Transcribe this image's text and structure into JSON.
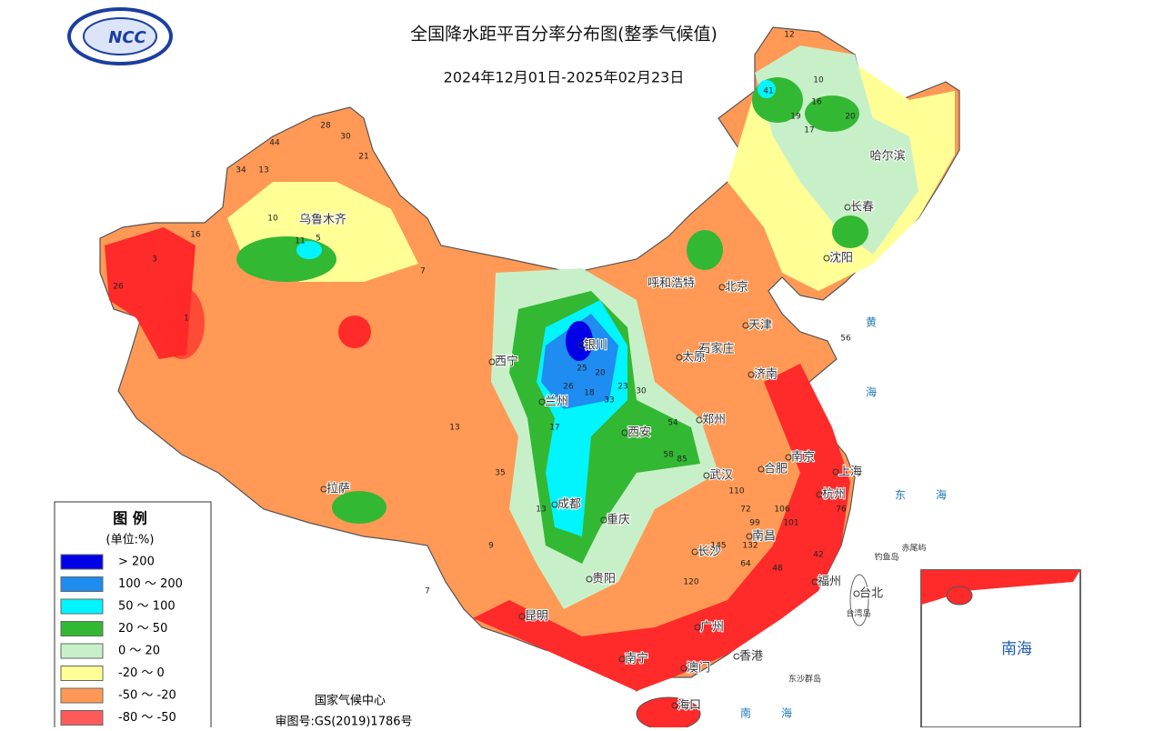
{
  "header": {
    "title": "全国降水距平百分率分布图(整季气候值)",
    "date_range": "2024年12月01日-2025年02月23日",
    "logo": "NCC"
  },
  "legend": {
    "title": "图 例",
    "unit": "(单位:%)",
    "items": [
      {
        "label": "> 200",
        "color": "#0000e6"
      },
      {
        "label": "100 ～ 200",
        "color": "#1e8cf0"
      },
      {
        "label": "50 ～ 100",
        "color": "#00f5ff"
      },
      {
        "label": "20 ～ 50",
        "color": "#33b833"
      },
      {
        "label": "0 ～ 20",
        "color": "#c8f0c8"
      },
      {
        "label": "-20 ～ 0",
        "color": "#ffff96"
      },
      {
        "label": "-50 ～ -20",
        "color": "#ff9955"
      },
      {
        "label": "-80 ～ -50",
        "color": "#ff5a5a"
      }
    ]
  },
  "footer": {
    "org": "国家气候中心",
    "approval": "审图号:GS(2019)1786号"
  },
  "cities": [
    "乌鲁木齐",
    "拉萨",
    "西宁",
    "兰州",
    "银川",
    "呼和浩特",
    "北京",
    "天津",
    "石家庄",
    "太原",
    "济南",
    "郑州",
    "西安",
    "成都",
    "重庆",
    "武汉",
    "合肥",
    "南京",
    "上海",
    "杭州",
    "长沙",
    "南昌",
    "福州",
    "台北",
    "贵阳",
    "昆明",
    "南宁",
    "广州",
    "香港",
    "澳门",
    "海口",
    "哈尔滨",
    "长春",
    "沈阳"
  ],
  "places": [
    "黄",
    "海",
    "东",
    "海",
    "南",
    "海",
    "钓鱼岛",
    "赤尾屿",
    "台湾岛",
    "东沙群岛"
  ],
  "inset": {
    "label": "南海"
  },
  "stations": [
    "12",
    "10",
    "41",
    "19",
    "16",
    "20",
    "17",
    "34",
    "13",
    "28",
    "30",
    "44",
    "21",
    "16",
    "11",
    "5",
    "10",
    "7",
    "26",
    "3",
    "1",
    "35",
    "13",
    "17",
    "25",
    "26",
    "18",
    "20",
    "23",
    "33",
    "30",
    "54",
    "58",
    "85",
    "110",
    "132",
    "145",
    "120",
    "72",
    "99",
    "106",
    "101",
    "64",
    "48",
    "42",
    "76",
    "56",
    "13",
    "9",
    "7"
  ]
}
